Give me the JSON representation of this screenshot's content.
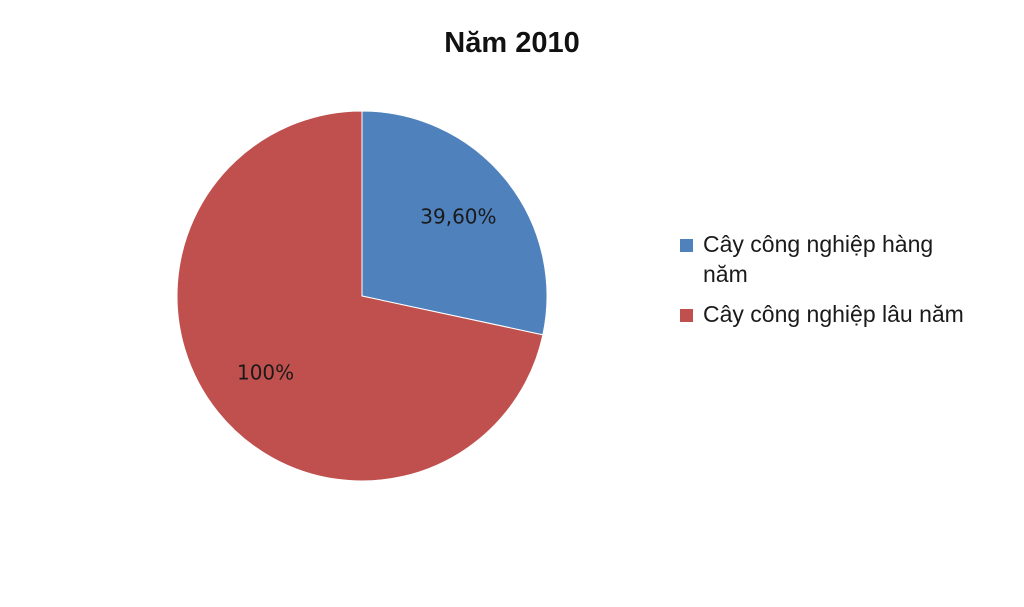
{
  "chart_data": {
    "type": "pie",
    "title": "Năm 2010",
    "slices": [
      {
        "name": "Cây công nghiệp hàng năm",
        "value": 39.6,
        "label": "39,60%",
        "color": "#4f81bd"
      },
      {
        "name": "Cây công nghiệp lâu năm",
        "value": 100,
        "label": "100%",
        "color": "#c0504d"
      }
    ],
    "legend_position": "right"
  }
}
